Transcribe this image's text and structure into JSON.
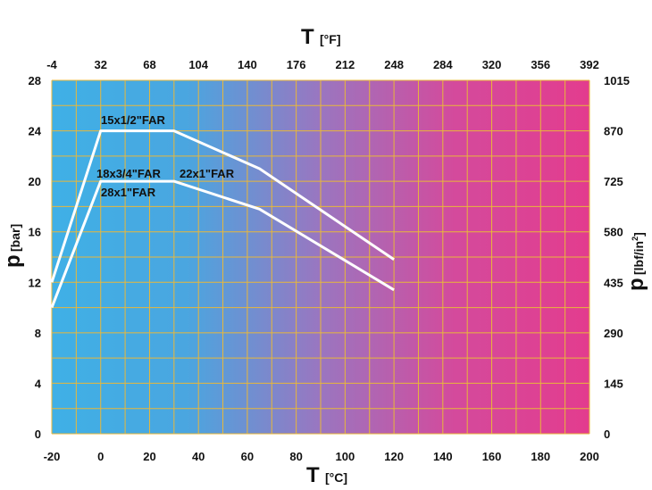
{
  "chart_data": {
    "type": "line",
    "x_bottom": {
      "label": "T",
      "unit": "[°C]",
      "range": [
        -20,
        200
      ],
      "ticks": [
        -20,
        0,
        20,
        40,
        60,
        80,
        100,
        120,
        140,
        160,
        180,
        200
      ]
    },
    "x_top": {
      "label": "T",
      "unit": "[°F]",
      "ticks": [
        "-4",
        "32",
        "68",
        "104",
        "140",
        "176",
        "212",
        "248",
        "284",
        "320",
        "356",
        "392"
      ]
    },
    "y_left": {
      "label": "p",
      "unit": "[bar]",
      "range": [
        0,
        28
      ],
      "ticks": [
        0,
        4,
        8,
        12,
        16,
        20,
        24,
        28
      ]
    },
    "y_right": {
      "label": "p",
      "unit_main": "[lbf/in",
      "unit_sup": "2",
      "unit_close": "]",
      "ticks": [
        "0",
        "145",
        "290",
        "435",
        "580",
        "725",
        "870",
        "1015"
      ]
    },
    "grid": true,
    "background_gradient": [
      "#3fb0e6",
      "#e33c8e"
    ],
    "grid_color": "#e8b73a",
    "line_color": "#ffffff",
    "series": [
      {
        "labels": [
          "15x1/2\"FAR"
        ],
        "points": [
          [
            -20,
            12
          ],
          [
            0,
            24
          ],
          [
            30,
            24
          ],
          [
            65,
            21
          ],
          [
            120,
            13.8
          ]
        ]
      },
      {
        "labels": [
          "18x3/4\"FAR",
          "22x1\"FAR",
          "28x1\"FAR"
        ],
        "points": [
          [
            -20,
            10
          ],
          [
            0,
            20
          ],
          [
            30,
            20
          ],
          [
            65,
            17.8
          ],
          [
            120,
            11.4
          ]
        ]
      }
    ]
  }
}
